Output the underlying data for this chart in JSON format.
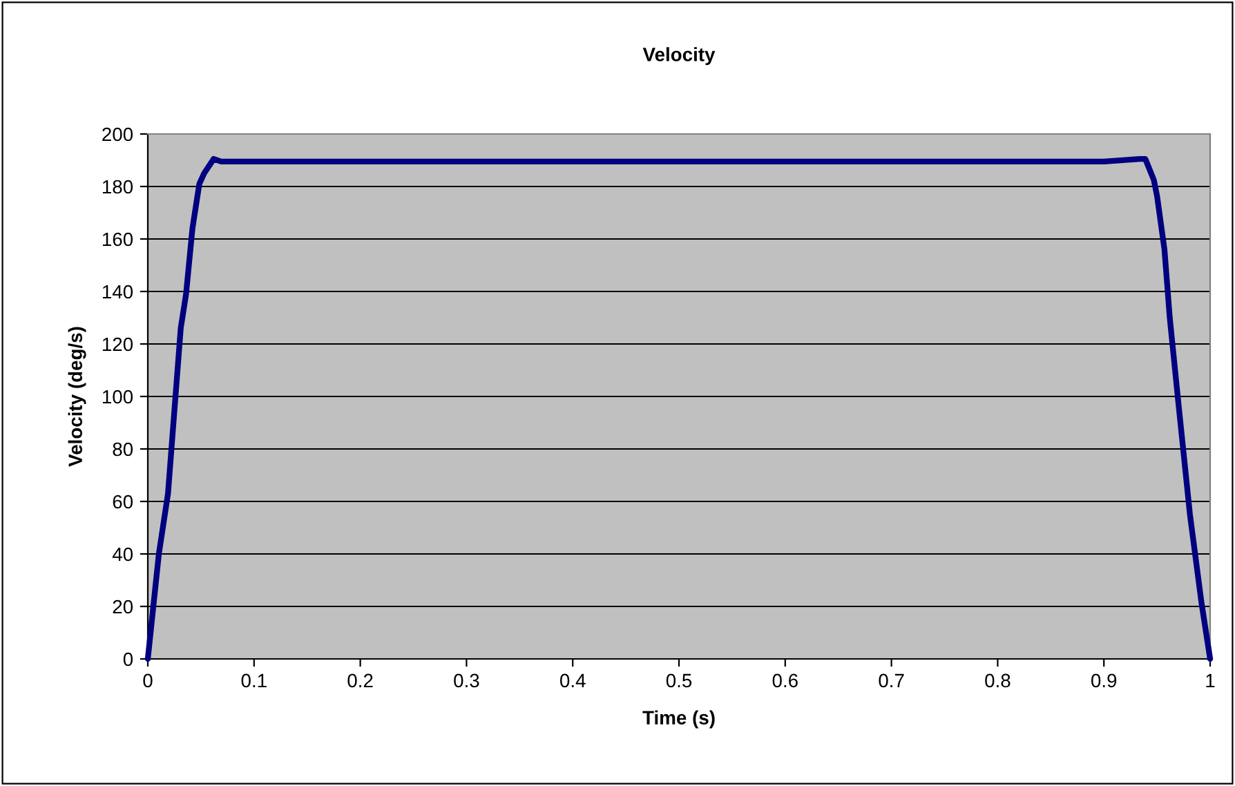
{
  "chart_data": {
    "type": "line",
    "title": "Velocity",
    "xlabel": "Time (s)",
    "ylabel": "Velocity (deg/s)",
    "xlim": [
      0,
      1
    ],
    "xticks": [
      0,
      0.1,
      0.2,
      0.3,
      0.4,
      0.5,
      0.6,
      0.7,
      0.8,
      0.9,
      1
    ],
    "ylim": [
      0,
      200
    ],
    "yticks": [
      0,
      20,
      40,
      60,
      80,
      100,
      120,
      140,
      160,
      180,
      200
    ],
    "grid": "y",
    "legend": false,
    "marker": "none",
    "line_style": "solid",
    "series": [
      {
        "color": "#000080",
        "x": [
          0,
          0.0104,
          0.019,
          0.031,
          0.036,
          0.042,
          0.0485,
          0.053,
          0.062,
          0.069,
          0.1,
          0.5,
          0.9,
          0.934,
          0.939,
          0.947,
          0.95,
          0.957,
          0.962,
          0.97,
          0.981,
          0.992,
          1.0
        ],
        "values": [
          0,
          40,
          63,
          126,
          139,
          164,
          181,
          185,
          190.5,
          189.5,
          189.5,
          189.5,
          189.5,
          190.5,
          190.5,
          182.5,
          176.5,
          156,
          130,
          98,
          55,
          21,
          0
        ]
      }
    ]
  }
}
